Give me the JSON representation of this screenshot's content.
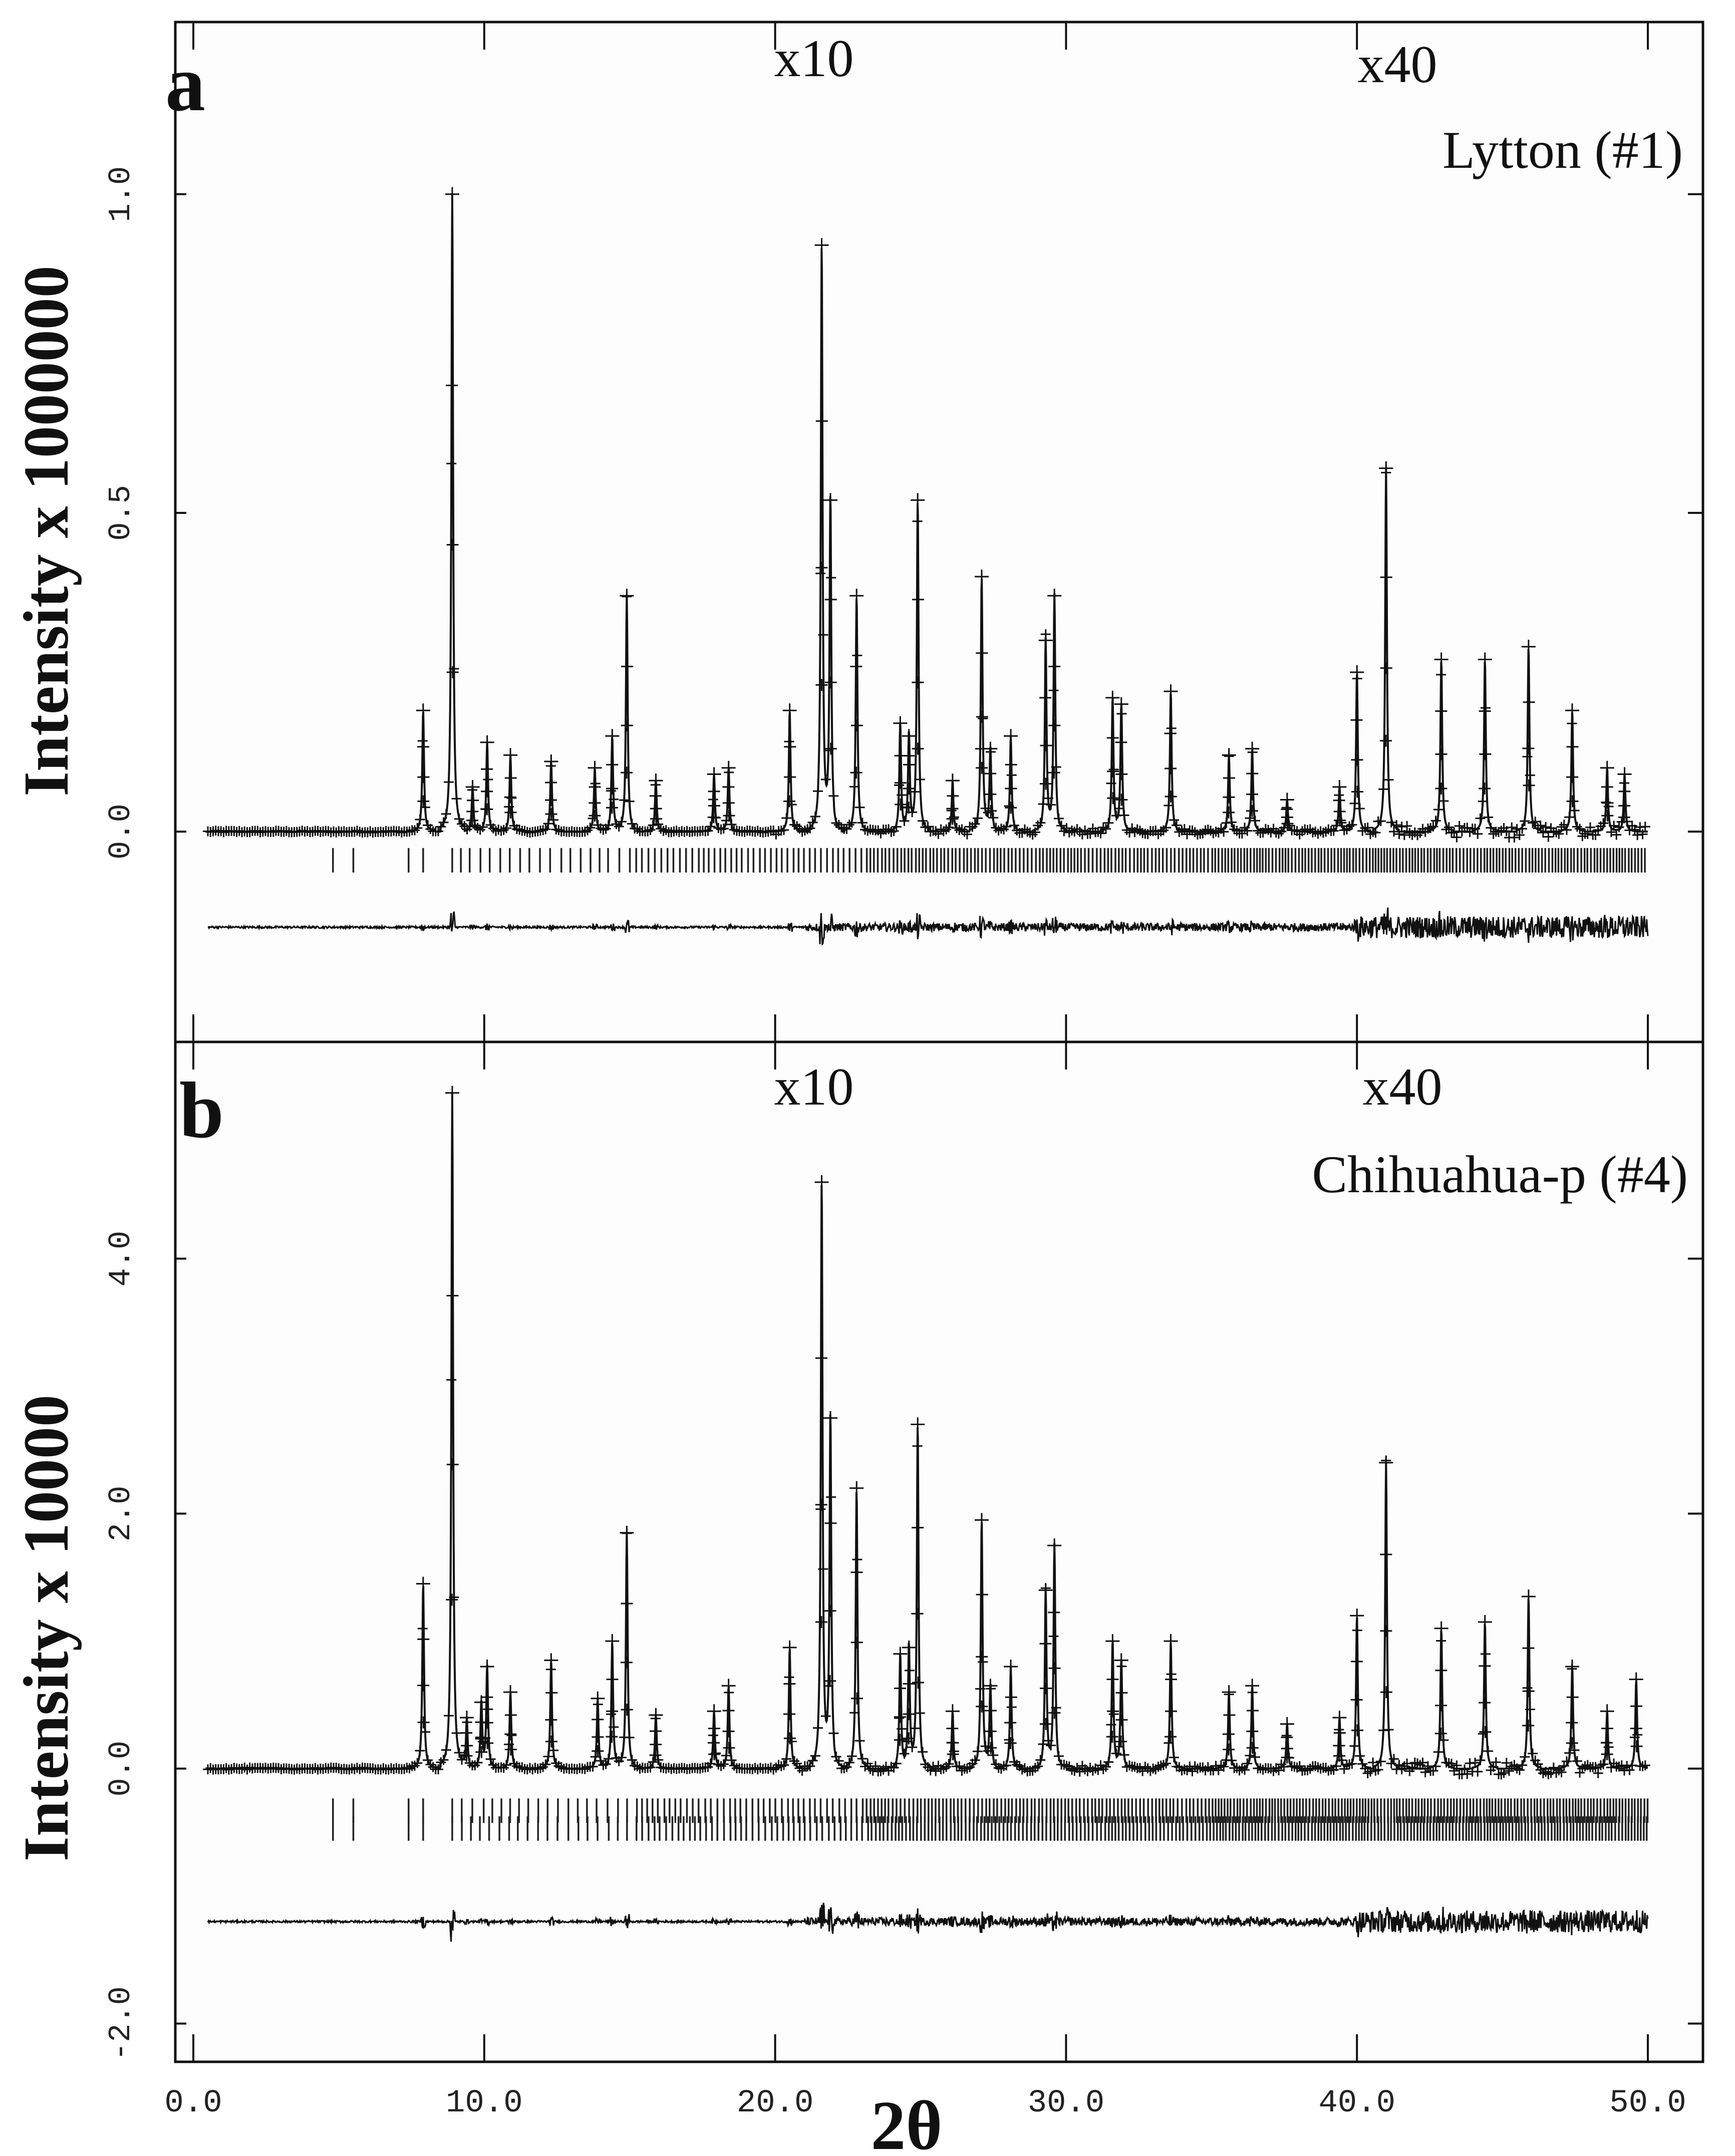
{
  "chart_data": [
    {
      "panel": "a",
      "type": "line",
      "sample_label": "Lytton (#1)",
      "ylabel": "Intensity x 1000000",
      "xlabel": "2θ",
      "xlim": [
        0,
        50
      ],
      "ylim": [
        -0.33,
        1.27
      ],
      "yticks": [
        0.0,
        0.5,
        1.0
      ],
      "ytick_labels": [
        "0.0",
        "0.5",
        "1.0"
      ],
      "scale_annotations": [
        {
          "text": "x10",
          "from_x": 20.0
        },
        {
          "text": "x40",
          "from_x": 40.0
        }
      ],
      "baseline": 0.0,
      "difference_offset": -0.15,
      "reflection_rows": [
        -0.045
      ],
      "series": [
        {
          "name": "observed (+)",
          "style": "markers"
        },
        {
          "name": "calculated",
          "style": "line"
        },
        {
          "name": "difference",
          "style": "line"
        }
      ],
      "peaks": [
        {
          "x": 7.9,
          "y": 0.19
        },
        {
          "x": 8.9,
          "y": 1.0
        },
        {
          "x": 9.6,
          "y": 0.07
        },
        {
          "x": 10.1,
          "y": 0.14
        },
        {
          "x": 10.9,
          "y": 0.12
        },
        {
          "x": 12.3,
          "y": 0.11
        },
        {
          "x": 13.8,
          "y": 0.1
        },
        {
          "x": 14.4,
          "y": 0.15
        },
        {
          "x": 14.9,
          "y": 0.37
        },
        {
          "x": 15.9,
          "y": 0.08
        },
        {
          "x": 17.9,
          "y": 0.09
        },
        {
          "x": 18.4,
          "y": 0.1
        },
        {
          "x": 20.5,
          "y": 0.19
        },
        {
          "x": 21.6,
          "y": 0.92
        },
        {
          "x": 21.9,
          "y": 0.52
        },
        {
          "x": 22.8,
          "y": 0.37
        },
        {
          "x": 24.3,
          "y": 0.17
        },
        {
          "x": 24.6,
          "y": 0.15
        },
        {
          "x": 24.9,
          "y": 0.52
        },
        {
          "x": 26.1,
          "y": 0.08
        },
        {
          "x": 27.1,
          "y": 0.4
        },
        {
          "x": 27.4,
          "y": 0.13
        },
        {
          "x": 28.1,
          "y": 0.15
        },
        {
          "x": 29.3,
          "y": 0.3
        },
        {
          "x": 29.6,
          "y": 0.37
        },
        {
          "x": 31.6,
          "y": 0.21
        },
        {
          "x": 31.9,
          "y": 0.2
        },
        {
          "x": 33.6,
          "y": 0.22
        },
        {
          "x": 35.6,
          "y": 0.12
        },
        {
          "x": 36.4,
          "y": 0.13
        },
        {
          "x": 37.6,
          "y": 0.05
        },
        {
          "x": 39.4,
          "y": 0.07
        },
        {
          "x": 40.0,
          "y": 0.25
        },
        {
          "x": 41.0,
          "y": 0.57
        },
        {
          "x": 42.9,
          "y": 0.27
        },
        {
          "x": 44.4,
          "y": 0.27
        },
        {
          "x": 45.9,
          "y": 0.29
        },
        {
          "x": 47.4,
          "y": 0.19
        },
        {
          "x": 48.6,
          "y": 0.1
        },
        {
          "x": 49.2,
          "y": 0.09
        }
      ]
    },
    {
      "panel": "b",
      "type": "line",
      "sample_label": "Chihuahua-p (#4)",
      "ylabel": "Intensity x 10000",
      "xlabel": "2θ",
      "xlim": [
        0,
        50
      ],
      "ylim": [
        -2.3,
        5.7
      ],
      "yticks": [
        -2.0,
        0.0,
        2.0,
        4.0
      ],
      "ytick_labels": [
        "-2.0",
        "0.0",
        "2.0",
        "4.0"
      ],
      "xticks": [
        0,
        10,
        20,
        30,
        40,
        50
      ],
      "xtick_labels": [
        "0.0",
        "10.0",
        "20.0",
        "30.0",
        "40.0",
        "50.0"
      ],
      "scale_annotations": [
        {
          "text": "x10",
          "from_x": 20.0
        },
        {
          "text": "x40",
          "from_x": 40.0
        }
      ],
      "baseline": 0.0,
      "difference_offset": -1.2,
      "reflection_rows": [
        -0.33,
        -0.47
      ],
      "series": [
        {
          "name": "observed (+)",
          "style": "markers"
        },
        {
          "name": "calculated",
          "style": "line"
        },
        {
          "name": "difference",
          "style": "line"
        }
      ],
      "peaks": [
        {
          "x": 7.9,
          "y": 1.45
        },
        {
          "x": 8.9,
          "y": 5.3
        },
        {
          "x": 9.4,
          "y": 0.4
        },
        {
          "x": 9.9,
          "y": 0.52
        },
        {
          "x": 10.1,
          "y": 0.8
        },
        {
          "x": 10.9,
          "y": 0.6
        },
        {
          "x": 12.3,
          "y": 0.85
        },
        {
          "x": 13.9,
          "y": 0.55
        },
        {
          "x": 14.4,
          "y": 1.0
        },
        {
          "x": 14.9,
          "y": 1.85
        },
        {
          "x": 15.9,
          "y": 0.42
        },
        {
          "x": 17.9,
          "y": 0.45
        },
        {
          "x": 18.4,
          "y": 0.65
        },
        {
          "x": 20.5,
          "y": 0.95
        },
        {
          "x": 21.6,
          "y": 4.6
        },
        {
          "x": 21.9,
          "y": 2.75
        },
        {
          "x": 22.8,
          "y": 2.2
        },
        {
          "x": 24.3,
          "y": 0.9
        },
        {
          "x": 24.6,
          "y": 0.95
        },
        {
          "x": 24.9,
          "y": 2.7
        },
        {
          "x": 26.1,
          "y": 0.45
        },
        {
          "x": 27.1,
          "y": 1.95
        },
        {
          "x": 27.4,
          "y": 0.65
        },
        {
          "x": 28.1,
          "y": 0.8
        },
        {
          "x": 29.3,
          "y": 1.4
        },
        {
          "x": 29.6,
          "y": 1.75
        },
        {
          "x": 31.6,
          "y": 1.0
        },
        {
          "x": 31.9,
          "y": 0.85
        },
        {
          "x": 33.6,
          "y": 1.0
        },
        {
          "x": 35.6,
          "y": 0.6
        },
        {
          "x": 36.4,
          "y": 0.65
        },
        {
          "x": 37.6,
          "y": 0.35
        },
        {
          "x": 39.4,
          "y": 0.4
        },
        {
          "x": 40.0,
          "y": 1.2
        },
        {
          "x": 41.0,
          "y": 2.4
        },
        {
          "x": 42.9,
          "y": 1.1
        },
        {
          "x": 44.4,
          "y": 1.15
        },
        {
          "x": 45.9,
          "y": 1.35
        },
        {
          "x": 47.4,
          "y": 0.8
        },
        {
          "x": 48.6,
          "y": 0.45
        },
        {
          "x": 49.6,
          "y": 0.7
        }
      ]
    }
  ],
  "panel_letters": [
    "a",
    "b"
  ],
  "x_axis_title": "2θ"
}
